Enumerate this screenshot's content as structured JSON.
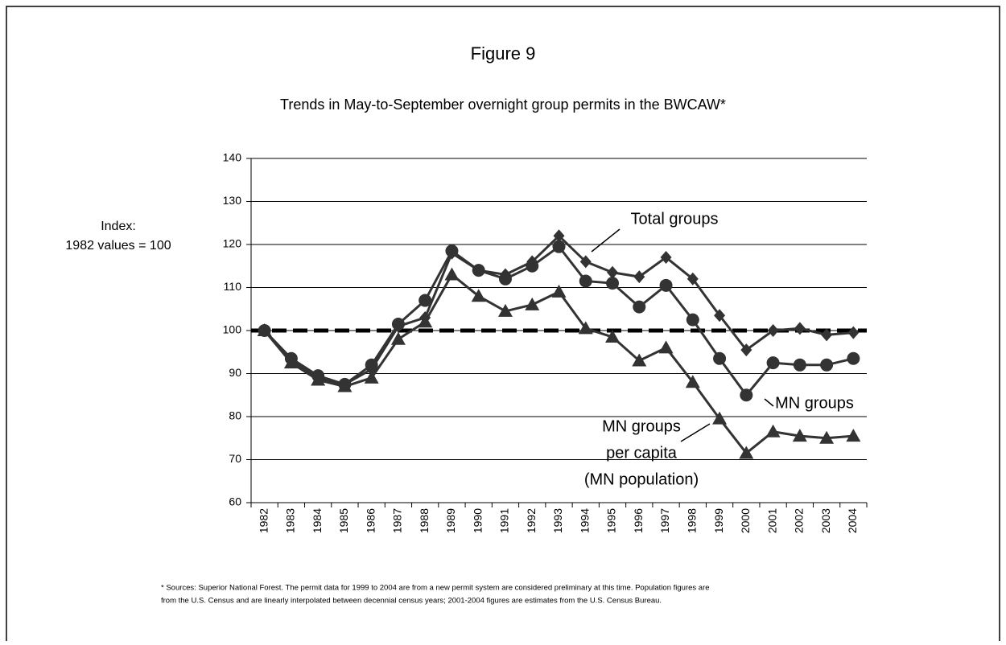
{
  "chart_data": {
    "type": "line",
    "title": "Figure 9",
    "subtitle": "Trends in May-to-September overnight group permits in the BWCAW*",
    "y_label": [
      "Index:",
      "1982 values = 100"
    ],
    "categories": [
      "1982",
      "1983",
      "1984",
      "1985",
      "1986",
      "1987",
      "1988",
      "1989",
      "1990",
      "1991",
      "1992",
      "1993",
      "1994",
      "1995",
      "1996",
      "1997",
      "1998",
      "1999",
      "2000",
      "2001",
      "2002",
      "2003",
      "2004"
    ],
    "series": [
      {
        "name": "Total groups",
        "color": "#333333",
        "marker": "diamond",
        "values": [
          100,
          93,
          89,
          87.5,
          91,
          101,
          103,
          118,
          114,
          113,
          116,
          122,
          116,
          113.5,
          112.5,
          117,
          112,
          103.5,
          95.5,
          100,
          100.5,
          99,
          99.5
        ]
      },
      {
        "name": "MN groups",
        "color": "#333333",
        "marker": "circle",
        "values": [
          100,
          93.5,
          89.5,
          87.5,
          92,
          101.5,
          107,
          118.5,
          114,
          112,
          115,
          119.5,
          111.5,
          111,
          105.5,
          110.5,
          102.5,
          93.5,
          85,
          92.5,
          92,
          92,
          93.5
        ]
      },
      {
        "name": "MN groups per capita (MN population)",
        "color": "#333333",
        "marker": "triangle",
        "values": [
          100,
          92.5,
          88.5,
          87,
          89,
          98,
          102,
          113,
          108,
          104.5,
          106,
          109,
          100.5,
          98.5,
          93,
          96,
          88,
          79.5,
          71.5,
          76.5,
          75.5,
          75,
          75.5
        ]
      }
    ],
    "annotations": [
      {
        "lines": [
          "Total groups"
        ]
      },
      {
        "lines": [
          "MN groups"
        ]
      },
      {
        "lines": [
          "MN groups",
          "per capita",
          "(MN  population)"
        ]
      }
    ],
    "reference_line": 100,
    "ylim": [
      60,
      140
    ],
    "yticks": [
      60,
      70,
      80,
      90,
      100,
      110,
      120,
      130,
      140
    ],
    "grid": true,
    "footnote": [
      "* Sources: Superior National Forest.  The permit data for 1999 to 2004 are from a new permit system are considered preliminary at this time.  Population figures are",
      "from the U.S. Census and are linearly interpolated between decennial census years; 2001-2004 figures are estimates from the U.S. Census Bureau."
    ]
  }
}
